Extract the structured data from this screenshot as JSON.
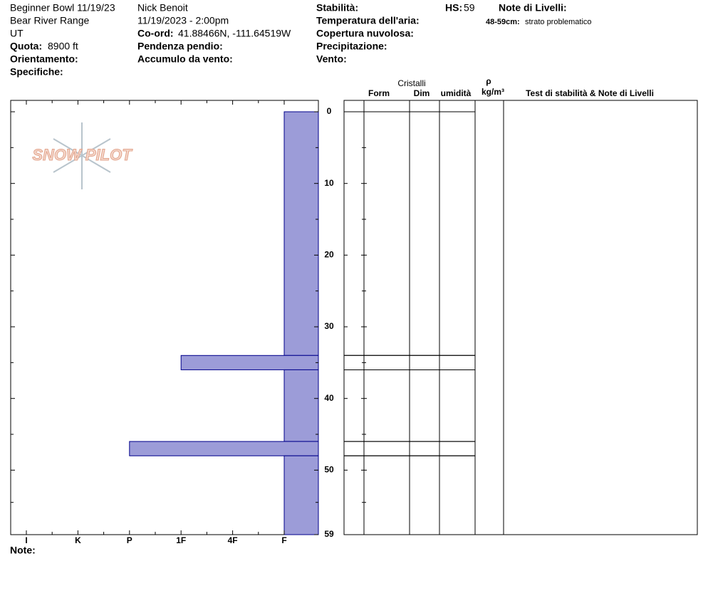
{
  "header": {
    "location": "Beginner Bowl 11/19/23",
    "range": "Bear River Range",
    "state": "UT",
    "elevation_label": "Quota:",
    "elevation": "8900 ft",
    "aspect_label": "Orientamento:",
    "specifics_label": "Specifiche:",
    "observer": "Nick Benoit",
    "datetime": "11/19/2023 - 2:00pm",
    "coord_label": "Co-ord:",
    "coord": "41.88466N, -111.64519W",
    "slope_label": "Pendenza pendio:",
    "wind_loading_label": "Accumulo da vento:",
    "stability_label": "Stabilità:",
    "air_temp_label": "Temperatura dell'aria:",
    "cloud_label": "Copertura nuvolosa:",
    "precip_label": "Precipitazione:",
    "wind_label": "Vento:",
    "hs_label": "HS:",
    "hs": 59,
    "layer_notes_label": "Note di Livelli:",
    "layer_notes": [
      {
        "range": "48-59cm:",
        "text": "strato problematico"
      }
    ],
    "logo": "SNOW PILOT",
    "notes_label": "Note:"
  },
  "table": {
    "crystals": "Cristalli",
    "form": "Form",
    "size": "Dim",
    "moisture": "umidità",
    "rho": "ρ",
    "density_unit": "kg/m³",
    "tests": "Test di stabilità & Note di Livelli"
  },
  "chart_data": {
    "type": "bar",
    "categories": [
      "I",
      "K",
      "P",
      "1F",
      "4F",
      "F"
    ],
    "ylim": [
      0,
      59
    ],
    "yticks": [
      0,
      10,
      20,
      30,
      40,
      50,
      59
    ],
    "color": "#9c9cd8",
    "layers": [
      {
        "top": 0,
        "bottom": 34,
        "hardness": "F"
      },
      {
        "top": 34,
        "bottom": 36,
        "hardness": "1F"
      },
      {
        "top": 36,
        "bottom": 46,
        "hardness": "F"
      },
      {
        "top": 46,
        "bottom": 48,
        "hardness": "P"
      },
      {
        "top": 48,
        "bottom": 59,
        "hardness": "F"
      }
    ]
  }
}
